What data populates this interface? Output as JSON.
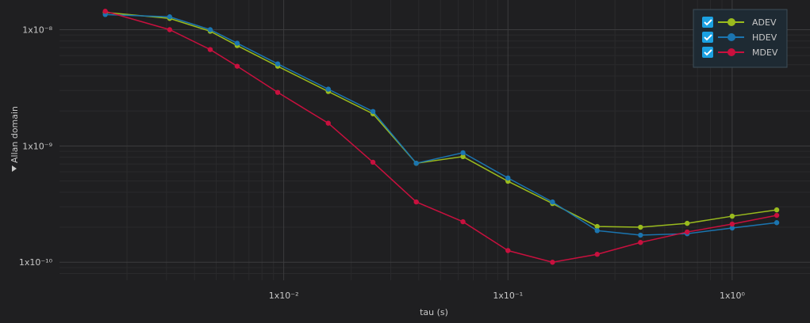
{
  "chart_data": {
    "type": "line",
    "x_label": "tau (s)",
    "y_label": "Allan domain",
    "log_x": true,
    "log_y": true,
    "grid": true,
    "legend": "top-right",
    "x": [
      0.0016,
      0.0031,
      0.0047,
      0.0062,
      0.0094,
      0.0158,
      0.025,
      0.039,
      0.063,
      0.1,
      0.158,
      0.25,
      0.39,
      0.63,
      1.0,
      1.58
    ],
    "series": [
      {
        "name": "ADEV",
        "color": "#9abb1e",
        "values": [
          1.41e-08,
          1.25e-08,
          9.7e-09,
          7.3e-09,
          4.85e-09,
          2.94e-09,
          1.89e-09,
          7.1e-10,
          8.1e-10,
          4.97e-10,
          3.2e-10,
          2.03e-10,
          2e-10,
          2.16e-10,
          2.49e-10,
          2.82e-10
        ]
      },
      {
        "name": "HDEV",
        "color": "#1b75b0",
        "values": [
          1.35e-08,
          1.29e-08,
          1e-08,
          7.65e-09,
          5.08e-09,
          3.08e-09,
          1.98e-09,
          7.1e-10,
          8.75e-10,
          5.3e-10,
          3.3e-10,
          1.87e-10,
          1.71e-10,
          1.76e-10,
          1.97e-10,
          2.19e-10
        ]
      },
      {
        "name": "MDEV",
        "color": "#c8103e",
        "values": [
          1.44e-08,
          1e-08,
          6.75e-09,
          4.85e-09,
          2.89e-09,
          1.57e-09,
          7.24e-10,
          3.3e-10,
          2.23e-10,
          1.26e-10,
          1e-10,
          1.17e-10,
          1.48e-10,
          1.82e-10,
          2.13e-10,
          2.53e-10
        ]
      }
    ],
    "xlim": [
      0.001,
      2
    ],
    "ylim": [
      7e-11,
      1.8e-08
    ],
    "xticks": [
      {
        "value": 0.01,
        "label": "1x10⁻²"
      },
      {
        "value": 0.1,
        "label": "1x10⁻¹"
      },
      {
        "value": 1,
        "label": "1x10⁰"
      }
    ],
    "yticks": [
      {
        "value": 1e-10,
        "label": "1x10⁻¹⁰"
      },
      {
        "value": 1e-09,
        "label": "1x10⁻⁹"
      },
      {
        "value": 1e-08,
        "label": "1x10⁻⁸"
      }
    ]
  }
}
